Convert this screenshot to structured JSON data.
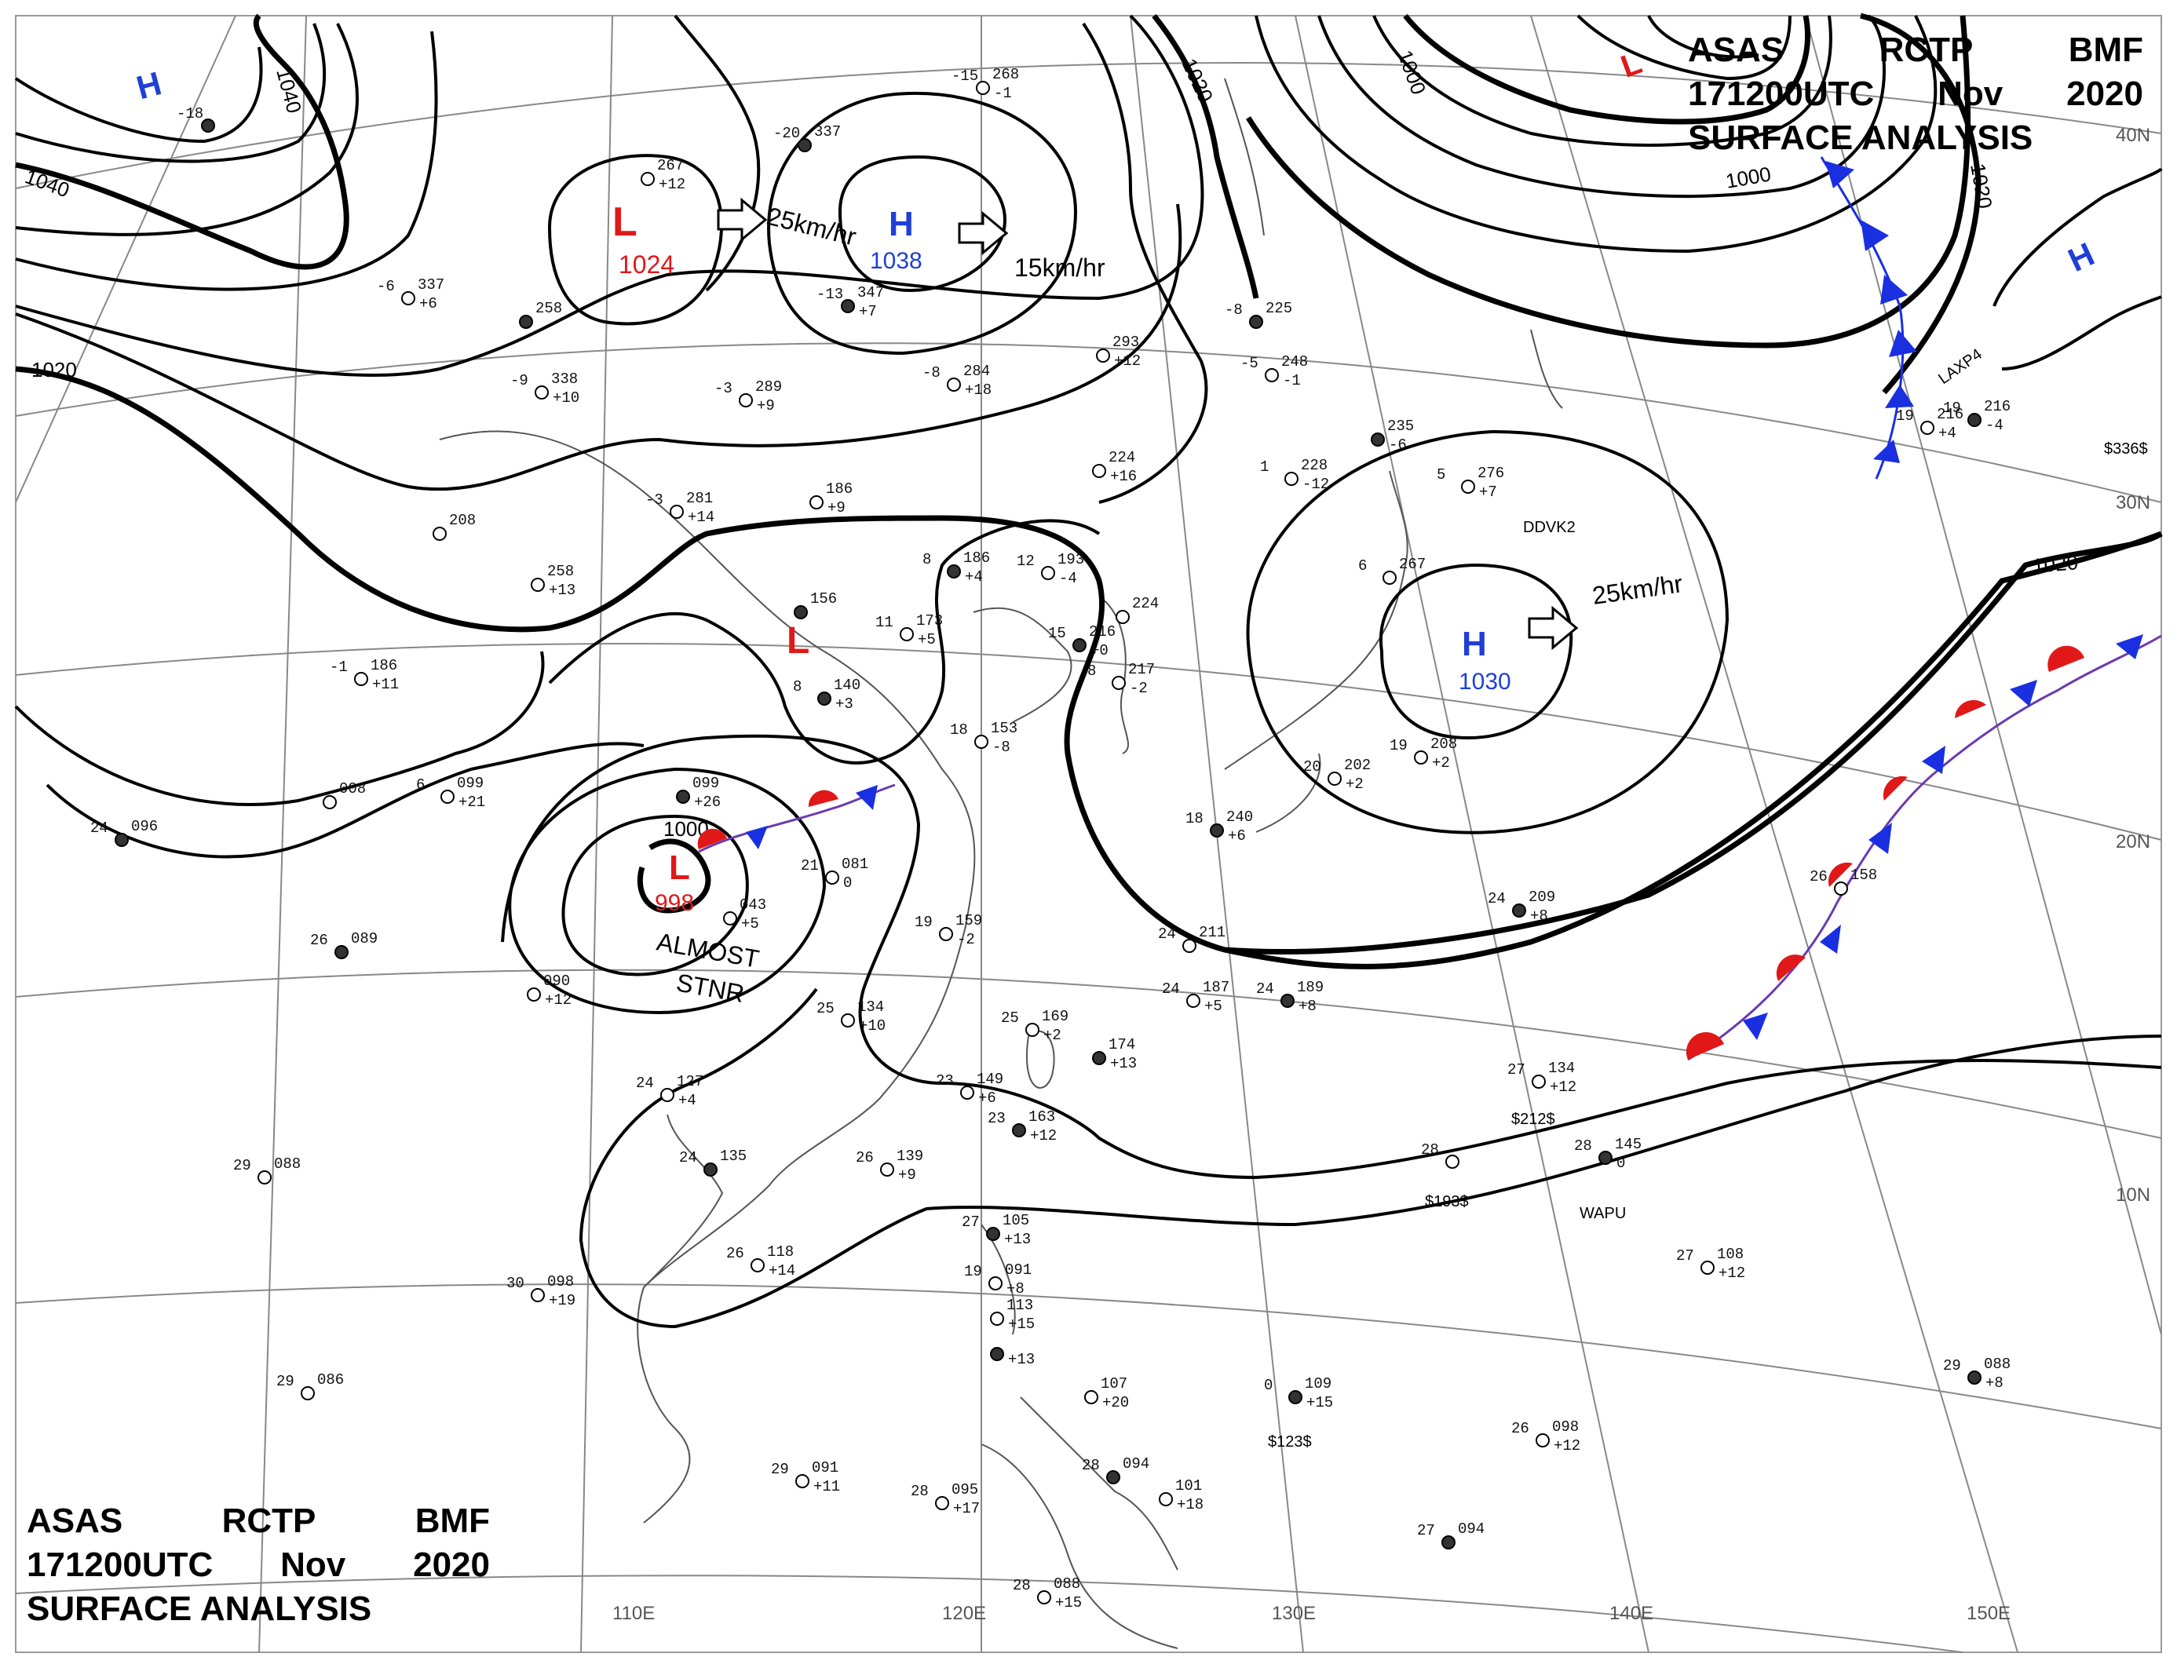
{
  "header": {
    "line1": [
      "ASAS",
      "RCTP",
      "BMF"
    ],
    "line2": [
      "171200UTC",
      "Nov",
      "2020"
    ],
    "line3": "SURFACE ANALYSIS"
  },
  "colors": {
    "high": "#1f3fd6",
    "low": "#e01818",
    "cold_front": "#1a2fe0",
    "warm_front": "#e01818",
    "isobar": "#000000",
    "coast": "#555555",
    "grid": "#777777"
  },
  "lon_labels": [
    "110E",
    "120E",
    "130E",
    "140E",
    "150E"
  ],
  "lat_labels": [
    "40N",
    "30N",
    "20N",
    "10N"
  ],
  "isobar_labels": [
    "1040",
    "1040",
    "1020",
    "1020",
    "1000",
    "1000",
    "1020",
    "1020",
    "1000"
  ],
  "centers": [
    {
      "type": "H",
      "pressure": ""
    },
    {
      "type": "L",
      "pressure": "1024"
    },
    {
      "type": "H",
      "pressure": "1038"
    },
    {
      "type": "L",
      "pressure": ""
    },
    {
      "type": "H",
      "pressure": ""
    },
    {
      "type": "L",
      "pressure": ""
    },
    {
      "type": "H",
      "pressure": "1030"
    },
    {
      "type": "L",
      "pressure": "998"
    }
  ],
  "motions": [
    "25km/hr",
    "15km/hr",
    "25km/hr"
  ],
  "stnr_label": [
    "ALMOST",
    "STNR"
  ],
  "stations": [
    {
      "t": "-18",
      "p": "",
      "d": ""
    },
    {
      "t": "",
      "p": "267",
      "d": "+12"
    },
    {
      "t": "-15",
      "p": "268",
      "d": "-1"
    },
    {
      "t": "-20",
      "p": "337",
      "d": ""
    },
    {
      "t": "-6",
      "p": "337",
      "d": "+6"
    },
    {
      "t": "-3",
      "p": "289",
      "d": "+9"
    },
    {
      "t": "-13",
      "p": "347",
      "d": "+7"
    },
    {
      "t": "-8",
      "p": "284",
      "d": "+18"
    },
    {
      "t": "",
      "p": "293",
      "d": "+12"
    },
    {
      "t": "-8",
      "p": "225",
      "d": ""
    },
    {
      "t": "-5",
      "p": "248",
      "d": "-1"
    },
    {
      "t": "-9",
      "p": "338",
      "d": "+10"
    },
    {
      "t": "",
      "p": "258",
      "d": ""
    },
    {
      "t": "-3",
      "p": "281",
      "d": "+14"
    },
    {
      "t": "",
      "p": "186",
      "d": "+9"
    },
    {
      "t": "8",
      "p": "186",
      "d": "+4"
    },
    {
      "t": "12",
      "p": "193",
      "d": "-4"
    },
    {
      "t": "",
      "p": "258",
      "d": "+13"
    },
    {
      "t": "",
      "p": "156",
      "d": ""
    },
    {
      "t": "11",
      "p": "173",
      "d": "+5"
    },
    {
      "t": "-1",
      "p": "186",
      "d": "+11"
    },
    {
      "t": "8",
      "p": "140",
      "d": "+3"
    },
    {
      "t": "18",
      "p": "153",
      "d": "-8"
    },
    {
      "t": "",
      "p": "224",
      "d": ""
    },
    {
      "t": "15",
      "p": "216",
      "d": "+0"
    },
    {
      "t": "8",
      "p": "217",
      "d": "-2"
    },
    {
      "t": "1",
      "p": "228",
      "d": "-12"
    },
    {
      "t": "",
      "p": "235",
      "d": "-6"
    },
    {
      "t": "5",
      "p": "276",
      "d": "+7"
    },
    {
      "t": "6",
      "p": "267",
      "d": ""
    },
    {
      "t": "19",
      "p": "216",
      "d": "-4"
    },
    {
      "t": "",
      "p": "224",
      "d": "+16"
    },
    {
      "t": "",
      "p": "208",
      "d": ""
    },
    {
      "t": "24",
      "p": "096",
      "d": ""
    },
    {
      "t": "6",
      "p": "099",
      "d": "+21"
    },
    {
      "t": "",
      "p": "008",
      "d": ""
    },
    {
      "t": "",
      "p": "099",
      "d": "+26"
    },
    {
      "t": "21",
      "p": "081",
      "d": "0"
    },
    {
      "t": "",
      "p": "043",
      "d": "+5"
    },
    {
      "t": "26",
      "p": "089",
      "d": ""
    },
    {
      "t": "",
      "p": "090",
      "d": "+12"
    },
    {
      "t": "19",
      "p": "159",
      "d": "-2"
    },
    {
      "t": "18",
      "p": "240",
      "d": "+6"
    },
    {
      "t": "20",
      "p": "202",
      "d": "+2"
    },
    {
      "t": "19",
      "p": "208",
      "d": "+2"
    },
    {
      "t": "24",
      "p": "209",
      "d": "+8"
    },
    {
      "t": "24",
      "p": "211",
      "d": ""
    },
    {
      "t": "24",
      "p": "187",
      "d": "+5"
    },
    {
      "t": "24",
      "p": "189",
      "d": "+8"
    },
    {
      "t": "25",
      "p": "134",
      "d": "+10"
    },
    {
      "t": "25",
      "p": "169",
      "d": "+2"
    },
    {
      "t": "",
      "p": "174",
      "d": "+13"
    },
    {
      "t": "24",
      "p": "127",
      "d": "+4"
    },
    {
      "t": "23",
      "p": "149",
      "d": "+6"
    },
    {
      "t": "23",
      "p": "163",
      "d": "+12"
    },
    {
      "t": "27",
      "p": "134",
      "d": "+12"
    },
    {
      "t": "26",
      "p": "158",
      "d": ""
    },
    {
      "t": "24",
      "p": "135",
      "d": ""
    },
    {
      "t": "26",
      "p": "139",
      "d": "+9"
    },
    {
      "t": "28",
      "p": "",
      "d": ""
    },
    {
      "t": "28",
      "p": "145",
      "d": "0"
    },
    {
      "t": "29",
      "p": "088",
      "d": ""
    },
    {
      "t": "26",
      "p": "118",
      "d": "+14"
    },
    {
      "t": "27",
      "p": "105",
      "d": "+13"
    },
    {
      "t": "19",
      "p": "091",
      "d": "+8"
    },
    {
      "t": "",
      "p": "113",
      "d": "+15"
    },
    {
      "t": "",
      "p": "",
      "d": "+13"
    },
    {
      "t": "30",
      "p": "098",
      "d": "+19"
    },
    {
      "t": "27",
      "p": "108",
      "d": "+12"
    },
    {
      "t": "29",
      "p": "088",
      "d": "+8"
    },
    {
      "t": "29",
      "p": "086",
      "d": ""
    },
    {
      "t": "",
      "p": "107",
      "d": "+20"
    },
    {
      "t": "0",
      "p": "109",
      "d": "+15"
    },
    {
      "t": "29",
      "p": "091",
      "d": "+11"
    },
    {
      "t": "28",
      "p": "095",
      "d": "+17"
    },
    {
      "t": "28",
      "p": "094",
      "d": ""
    },
    {
      "t": "",
      "p": "101",
      "d": "+18"
    },
    {
      "t": "26",
      "p": "098",
      "d": "+12"
    },
    {
      "t": "27",
      "p": "094",
      "d": ""
    },
    {
      "t": "28",
      "p": "088",
      "d": "+15"
    },
    {
      "t": "19",
      "p": "216",
      "d": "+4"
    }
  ],
  "ship_labels": [
    "$212$",
    "$193$",
    "WAPU",
    "$123$",
    "DDVK2",
    "LAXP4",
    "$336$"
  ]
}
